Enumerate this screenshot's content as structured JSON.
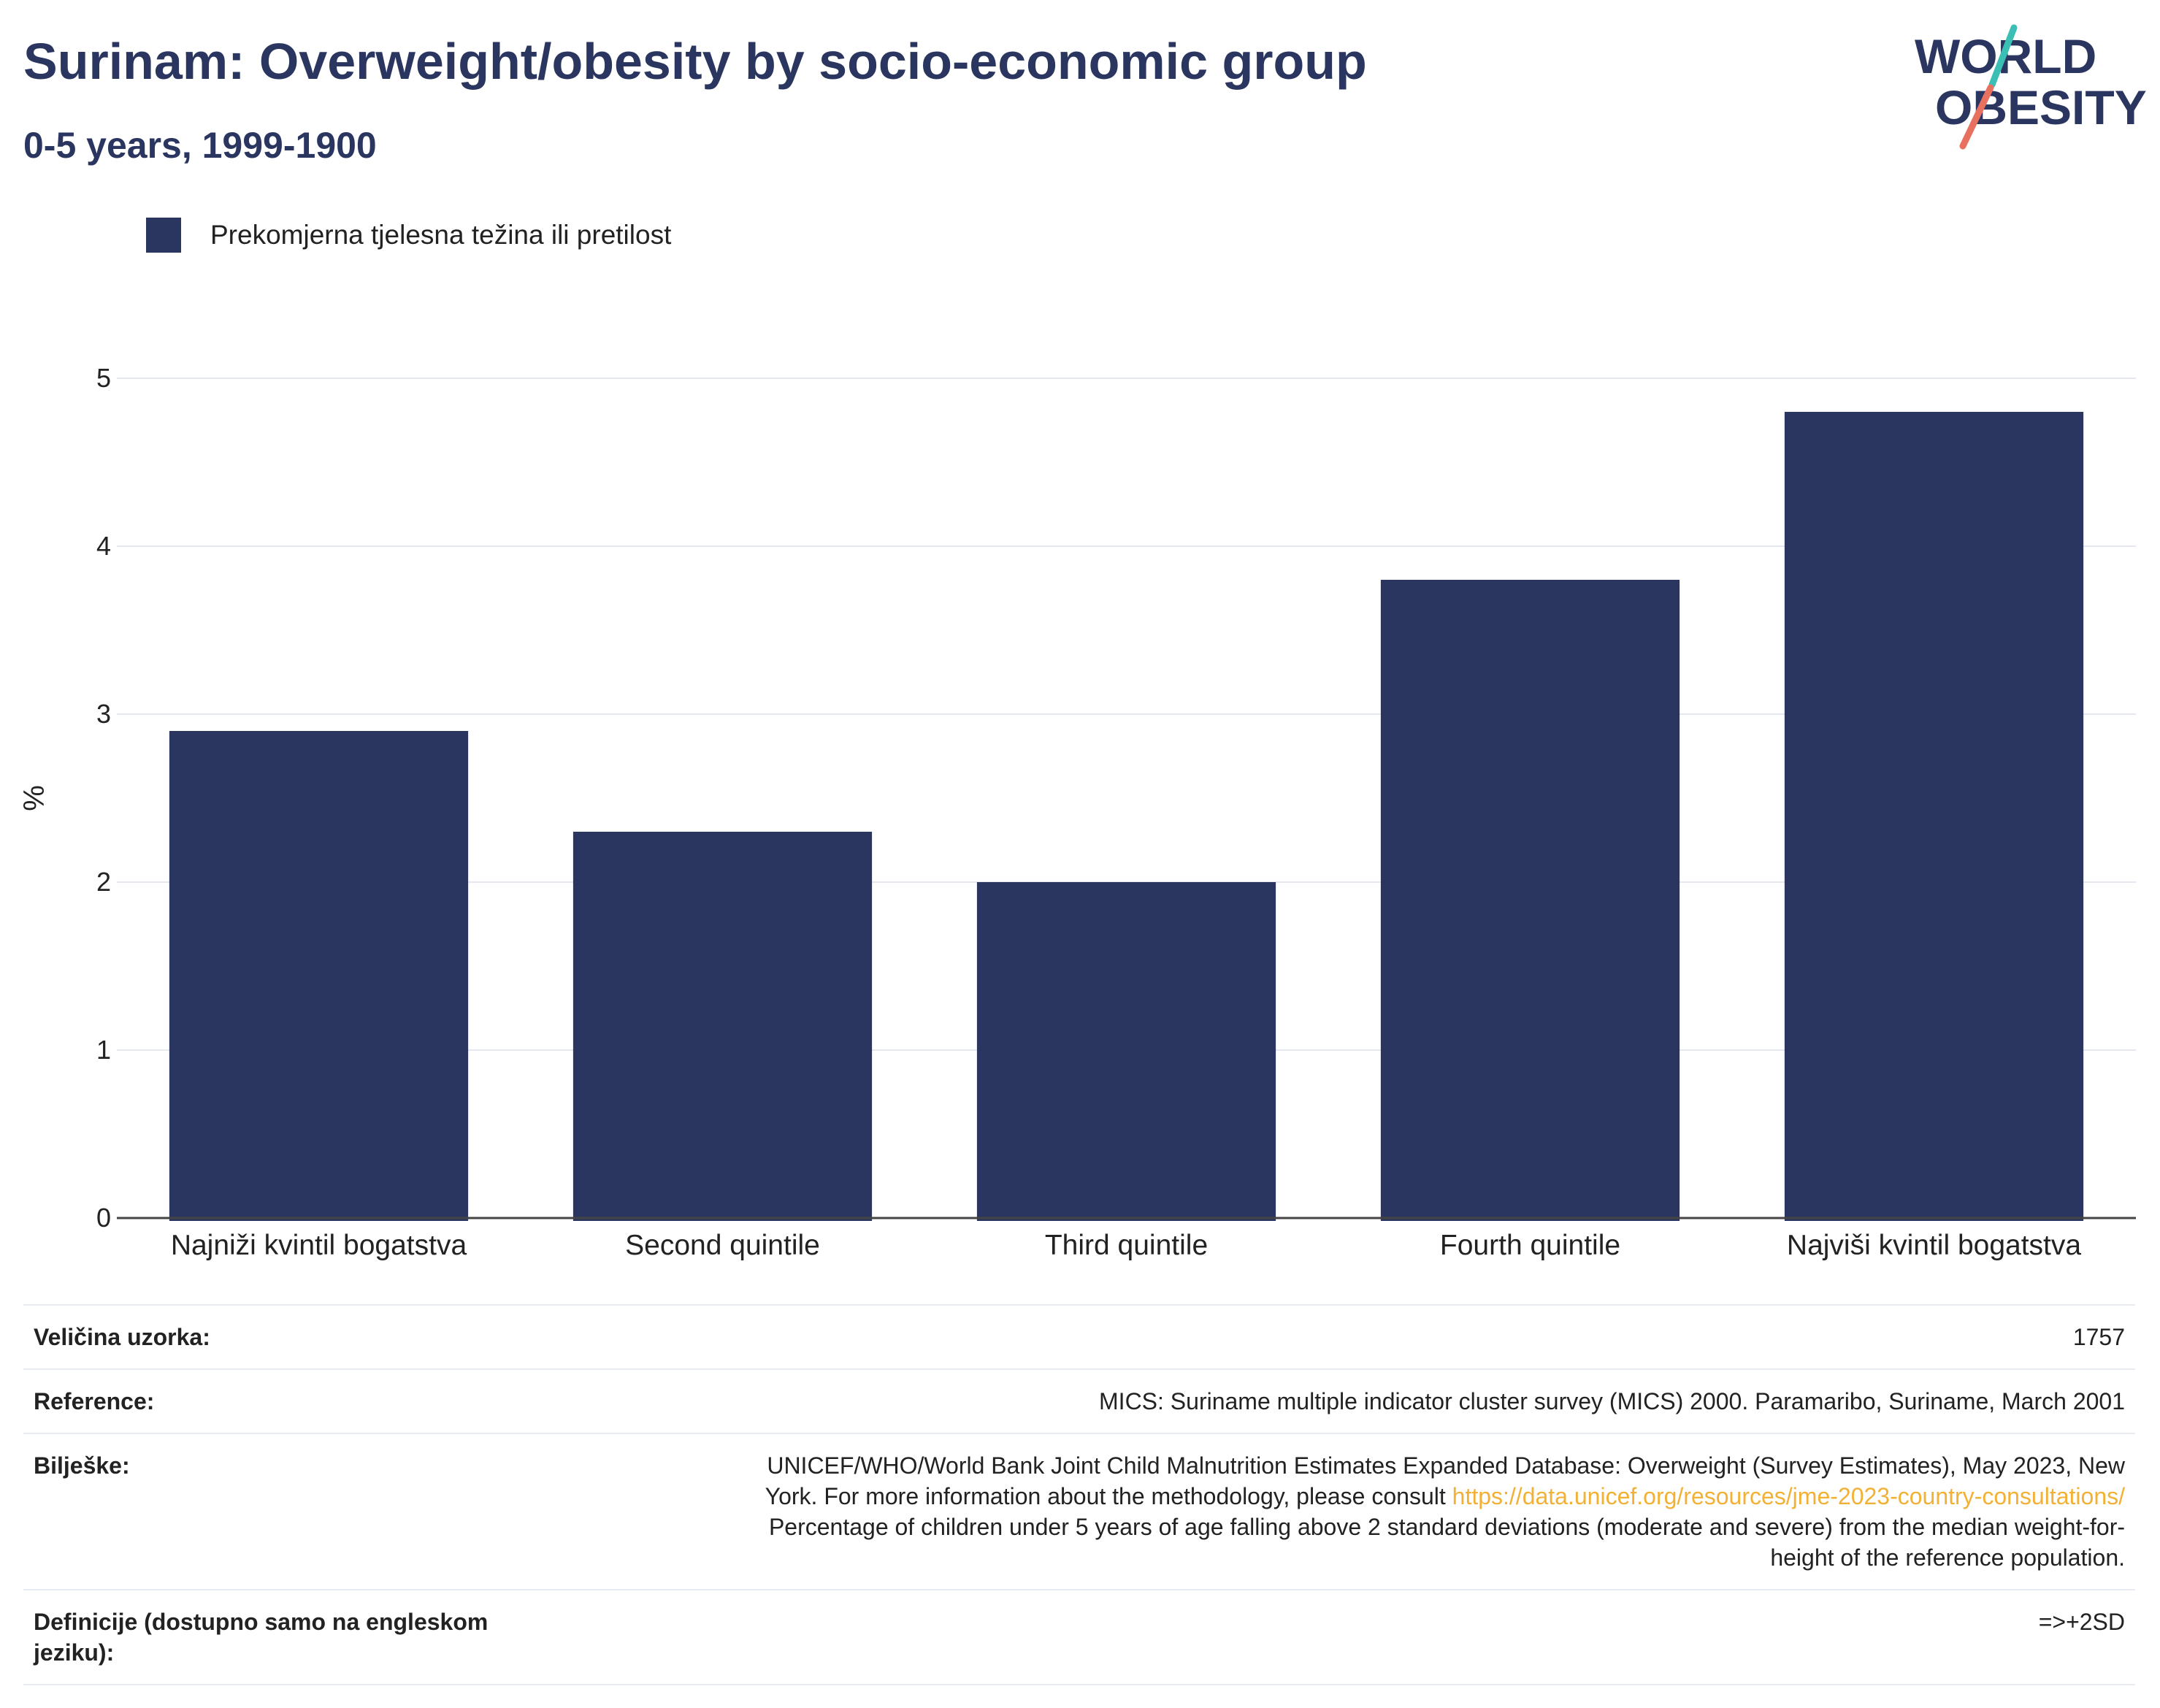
{
  "header": {
    "title": "Surinam: Overweight/obesity by socio-economic group",
    "subtitle": "0-5 years, 1999-1900",
    "logo_line1": "WORLD",
    "logo_line2": "OBESITY"
  },
  "colors": {
    "bar": "#2a365f",
    "title": "#2a365f",
    "link": "#f2b135",
    "logo_teal": "#3bbfb4",
    "logo_coral": "#e8705f"
  },
  "chart_data": {
    "type": "bar",
    "categories": [
      "Najniži kvintil bogatstva",
      "Second quintile",
      "Third quintile",
      "Fourth quintile",
      "Najviši kvintil bogatstva"
    ],
    "series": [
      {
        "name": "Prekomjerna tjelesna težina ili pretilost",
        "values": [
          2.9,
          2.3,
          2.0,
          3.8,
          4.8
        ]
      }
    ],
    "ylabel": "%",
    "ylim": [
      0,
      5
    ],
    "yticks": [
      0,
      1,
      2,
      3,
      4,
      5
    ],
    "grid": true,
    "legend": "top-left"
  },
  "info": {
    "sample_label": "Veličina uzorka:",
    "sample_value": "1757",
    "reference_label": "Reference:",
    "reference_value": "MICS: Suriname multiple indicator cluster survey (MICS) 2000. Paramaribo, Suriname, March 2001",
    "notes_label": "Bilješke:",
    "notes_line1": "UNICEF/WHO/World Bank Joint Child Malnutrition Estimates Expanded Database: Overweight (Survey Estimates), May 2023, New",
    "notes_line2": "York. For more information about the methodology, please consult",
    "notes_link": "https://data.unicef.org/resources/jme-2023-country-consultations/",
    "notes_line3": "Percentage of children under 5 years of age falling above 2 standard deviations (moderate and severe) from the median weight-for-",
    "notes_line4": "height of the reference population.",
    "definitions_label": "Definicije (dostupno samo na engleskom jeziku):",
    "definitions_value": "=>+2SD"
  }
}
